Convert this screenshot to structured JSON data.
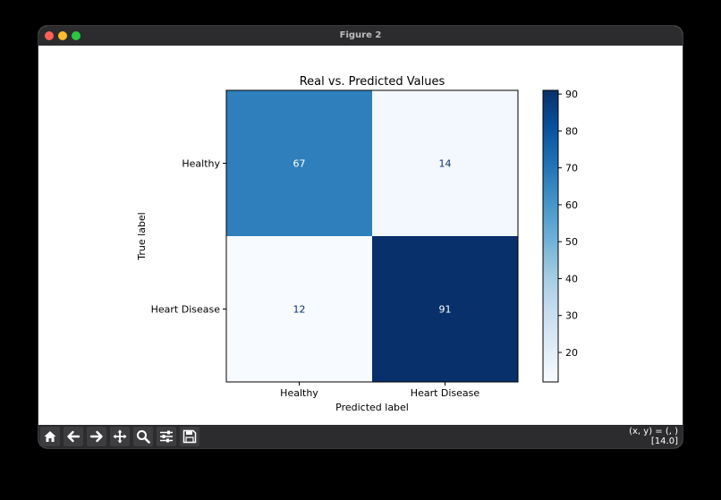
{
  "window": {
    "title": "Figure 2"
  },
  "toolbar": {
    "tools": [
      "home-icon",
      "back-arrow-icon",
      "forward-arrow-icon",
      "pan-icon",
      "zoom-icon",
      "configure-subplots-icon",
      "save-icon"
    ],
    "coords_line1": "(x, y) = (, )",
    "coords_line2": "[14.0]"
  },
  "chart_data": {
    "type": "heatmap",
    "title": "Real vs. Predicted Values",
    "xlabel": "Predicted label",
    "ylabel": "True label",
    "x_categories": [
      "Healthy",
      "Heart Disease"
    ],
    "y_categories": [
      "Healthy",
      "Heart Disease"
    ],
    "values": [
      [
        67,
        14
      ],
      [
        12,
        91
      ]
    ],
    "colormap": "Blues",
    "colorbar": {
      "range": [
        12,
        91
      ],
      "ticks": [
        20,
        30,
        40,
        50,
        60,
        70,
        80,
        90
      ]
    },
    "colors": [
      "#f7fbff",
      "#deebf7",
      "#c6dbef",
      "#9ecae1",
      "#6baed6",
      "#4292c6",
      "#2171b5",
      "#08519c",
      "#08306b"
    ]
  }
}
